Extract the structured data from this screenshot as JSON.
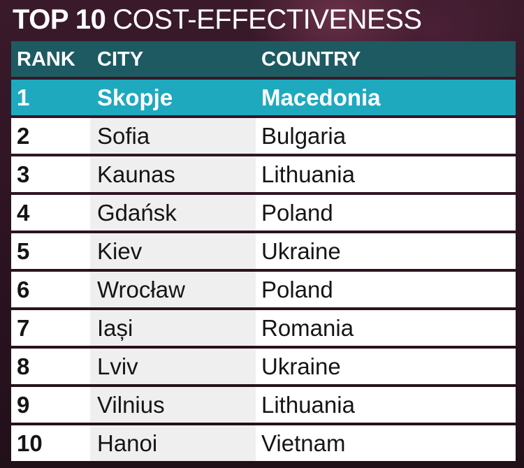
{
  "title": {
    "bold": "TOP 10",
    "light": "COST-EFFECTIVENESS"
  },
  "table": {
    "headers": {
      "rank": "RANK",
      "city": "CITY",
      "country": "COUNTRY"
    },
    "rows": [
      {
        "rank": "1",
        "city": "Skopje",
        "country": "Macedonia"
      },
      {
        "rank": "2",
        "city": "Sofia",
        "country": "Bulgaria"
      },
      {
        "rank": "3",
        "city": "Kaunas",
        "country": "Lithuania"
      },
      {
        "rank": "4",
        "city": "Gdańsk",
        "country": "Poland"
      },
      {
        "rank": "5",
        "city": "Kiev",
        "country": "Ukraine"
      },
      {
        "rank": "6",
        "city": "Wrocław",
        "country": "Poland"
      },
      {
        "rank": "7",
        "city": "Iași",
        "country": "Romania"
      },
      {
        "rank": "8",
        "city": "Lviv",
        "country": "Ukraine"
      },
      {
        "rank": "9",
        "city": "Vilnius",
        "country": "Lithuania"
      },
      {
        "rank": "10",
        "city": "Hanoi",
        "country": "Vietnam"
      }
    ]
  },
  "colors": {
    "header_bg": "#1d5a62",
    "highlight_bg": "#1fa9bf",
    "row_bg": "#ffffff",
    "background": "#2a1420"
  }
}
